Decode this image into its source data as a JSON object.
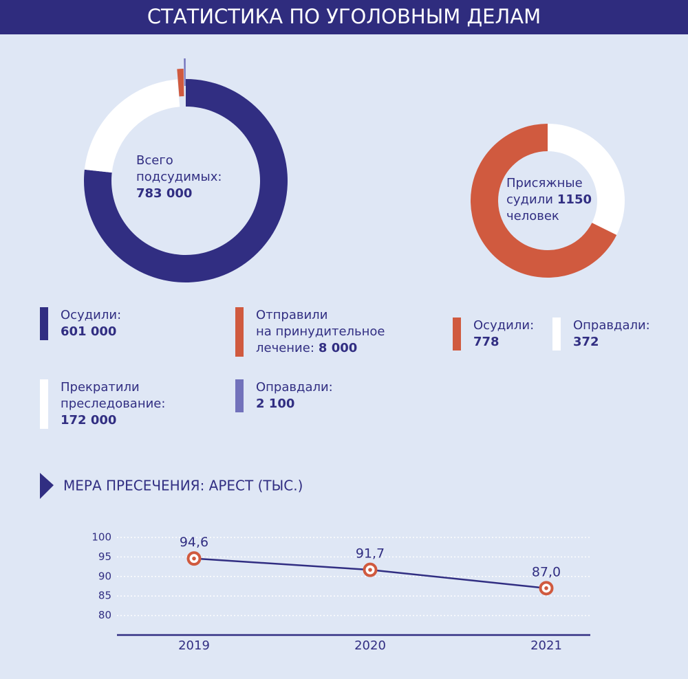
{
  "title": "СТАТИСТИКА ПО УГОЛОВНЫМ ДЕЛАМ",
  "chart_data": [
    {
      "type": "donut",
      "center_text": [
        "Всего",
        "подсудимых:"
      ],
      "total": {
        "value": 783000,
        "label": "783 000"
      },
      "categories": [
        [
          "Осудили:"
        ],
        [
          "Прекратили",
          "преследование:"
        ],
        [
          "Отправили",
          "на принудительное",
          "лечение:"
        ],
        [
          "Оправдали:"
        ]
      ],
      "values": [
        601000,
        172000,
        8000,
        2100
      ],
      "value_labels": [
        "601 000",
        "172 000",
        "8 000",
        "2 100"
      ],
      "colors": [
        "#312e82",
        "#ffffff",
        "#d05a3f",
        "#7272bb"
      ]
    },
    {
      "type": "donut",
      "center_text": [
        "Присяжные",
        "судили"
      ],
      "total": 1150,
      "center_text_after": "человек",
      "categories": [
        [
          "Осудили:"
        ],
        [
          "Оправдали:"
        ]
      ],
      "values": [
        778,
        372
      ],
      "colors": [
        "#d05a3f",
        "#ffffff"
      ]
    },
    {
      "type": "line",
      "title": "МЕРА ПРЕСЕЧЕНИЯ: АРЕСТ (ТЫС.)",
      "categories": [
        "2019",
        "2020",
        "2021"
      ],
      "values": [
        94.6,
        91.7,
        87.0
      ],
      "value_labels": [
        "94,6",
        "91,7",
        "87,0"
      ],
      "ylim": [
        75,
        100
      ],
      "yticks": [
        80,
        85,
        90,
        95,
        100
      ],
      "grid": true,
      "color": "#312e82",
      "marker_color": "#d05a3f"
    }
  ]
}
